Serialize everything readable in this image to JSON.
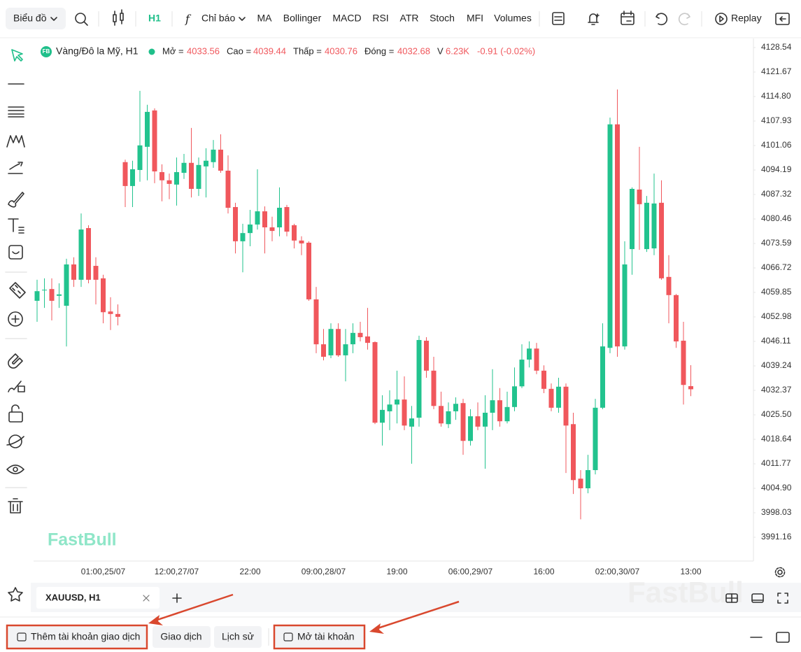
{
  "toolbar": {
    "chart_menu": "Biểu đồ",
    "interval": "H1",
    "indicators": "Chỉ báo",
    "items": [
      "MA",
      "Bollinger",
      "MACD",
      "RSI",
      "ATR",
      "Stoch",
      "MFI",
      "Volumes"
    ],
    "replay": "Replay"
  },
  "legend": {
    "badge": "FB",
    "symbol": "Vàng/Đô la Mỹ, H1",
    "open": "Mở =",
    "high": "Cao =",
    "low": "Thấp =",
    "close": "Đóng =",
    "volume_label": "V",
    "volume": "6.23K",
    "change": "-0.91 (-0.02%)"
  },
  "watermark": "FastBull",
  "tab": {
    "name": "XAUUSD, H1"
  },
  "footer": {
    "buttons": [
      "Thêm tài khoản giao dịch",
      "Giao dịch",
      "Lịch sử",
      "Mở tài khoản"
    ]
  },
  "chart_data": {
    "type": "candlestick",
    "up_color": "#22c38e",
    "down_color": "#f0575c",
    "categories": [
      null,
      null,
      null,
      null,
      null,
      null,
      null,
      null,
      null,
      "01:00,25/07",
      null,
      null,
      null,
      null,
      null,
      null,
      null,
      null,
      null,
      "12:00,27/07",
      null,
      null,
      null,
      null,
      null,
      null,
      null,
      null,
      null,
      "22:00",
      null,
      null,
      null,
      null,
      null,
      null,
      null,
      null,
      null,
      "09:00,28/07",
      null,
      null,
      null,
      null,
      null,
      null,
      null,
      null,
      null,
      "19:00",
      null,
      null,
      null,
      null,
      null,
      null,
      null,
      null,
      null,
      "06:00,29/07",
      null,
      null,
      null,
      null,
      null,
      null,
      null,
      null,
      null,
      "16:00",
      null,
      null,
      null,
      null,
      null,
      null,
      null,
      null,
      null,
      "02:00,30/07",
      null,
      null,
      null,
      null,
      null,
      null,
      null,
      null,
      null,
      "13:00"
    ],
    "open": [
      4057.5,
      4060.4,
      4060.8,
      4058.9,
      4056.1,
      4067.7,
      4063.4,
      4077.9,
      4067.3,
      4063.8,
      4054.5,
      4053.8,
      4096.4,
      4089.7,
      4094.2,
      4100.7,
      4110.9,
      4093.6,
      4091.3,
      4090.1,
      4093.4,
      4096.2,
      4088.9,
      4095.2,
      4096.4,
      4099.9,
      4094.0,
      4083.8,
      4074.2,
      4076.5,
      4078.9,
      4082.6,
      4078.1,
      4078.1,
      4083.8,
      4078.7,
      4074.4,
      4073.8,
      4057.9,
      4045.3,
      4042.2,
      4049.6,
      4042.2,
      4045.3,
      4048.5,
      4047.5,
      4045.9,
      4023.3,
      4026.5,
      4028.4,
      4029.8,
      4022.2,
      4024.7,
      4046.3,
      4037.9,
      4028.0,
      4022.9,
      4026.5,
      4028.8,
      4018.2,
      4025.1,
      4022.2,
      4026.1,
      4029.6,
      4023.7,
      4027.7,
      4033.5,
      4041.0,
      4044.1,
      4037.9,
      4032.8,
      4027.5,
      4033.4,
      4022.9,
      4007.6,
      4004.9,
      4010.0,
      4027.5,
      4044.3,
      4107.0,
      4044.7,
      4072.0,
      4088.7,
      4072.0,
      4072.2,
      4085.0,
      4064.2,
      4059.1,
      4046.3,
      4033.56
    ],
    "high": [
      4063.4,
      4063.8,
      4063.8,
      4062.4,
      4069.3,
      4069.7,
      4082.0,
      4078.7,
      4069.7,
      4064.8,
      4058.5,
      4056.5,
      4097.1,
      4096.8,
      4116.4,
      4112.5,
      4111.5,
      4095.8,
      4093.2,
      4097.7,
      4098.7,
      4106.0,
      4097.7,
      4100.3,
      4102.6,
      4104.2,
      4098.3,
      4085.0,
      4079.1,
      4083.0,
      4094.4,
      4084.0,
      4081.1,
      4089.3,
      4084.4,
      4079.1,
      4075.6,
      4074.2,
      4061.4,
      4049.6,
      4051.2,
      4051.2,
      4049.6,
      4051.2,
      4051.6,
      4055.5,
      4046.1,
      4031.0,
      4032.4,
      4037.9,
      4036.3,
      4028.0,
      4047.7,
      4047.3,
      4041.8,
      4032.0,
      4029.0,
      4030.4,
      4030.0,
      4027.1,
      4029.0,
      4031.0,
      4038.3,
      4033.0,
      4032.0,
      4038.8,
      4045.3,
      4046.1,
      4045.7,
      4039.4,
      4034.3,
      4035.9,
      4034.3,
      4026.1,
      4010.0,
      4014.3,
      4030.0,
      4051.2,
      4108.9,
      4116.8,
      4074.2,
      4089.3,
      4100.7,
      4086.9,
      4093.2,
      4091.3,
      4070.3,
      4059.4,
      4051.6,
      4039.44
    ],
    "low": [
      4051.6,
      4055.5,
      4052.0,
      4055.5,
      4044.7,
      4061.4,
      4061.4,
      4062.4,
      4056.5,
      4051.2,
      4049.3,
      4050.6,
      4083.8,
      4083.8,
      4090.9,
      4091.3,
      4090.5,
      4085.4,
      4086.0,
      4084.2,
      4091.7,
      4086.5,
      4086.9,
      4086.5,
      4094.8,
      4093.4,
      4082.0,
      4070.8,
      4065.5,
      4072.8,
      4077.5,
      4070.8,
      4074.2,
      4075.6,
      4075.6,
      4072.2,
      4070.3,
      4057.5,
      4042.8,
      4040.8,
      4041.4,
      4041.8,
      4034.9,
      4042.8,
      4046.1,
      4043.8,
      4022.9,
      4016.9,
      4021.2,
      4023.1,
      4021.2,
      4011.8,
      4022.2,
      4035.9,
      4027.1,
      4022.2,
      4021.8,
      4024.1,
      4014.3,
      4016.9,
      4021.2,
      4010.4,
      4021.2,
      4022.2,
      4023.1,
      4026.5,
      4033.0,
      4038.8,
      4036.9,
      4031.6,
      4026.5,
      4026.1,
      4009.2,
      4003.3,
      3996.2,
      4003.5,
      4008.8,
      4027.1,
      4042.8,
      4041.8,
      4043.8,
      4064.8,
      4071.8,
      4071.2,
      4070.3,
      4063.4,
      4051.2,
      4044.3,
      4028.4,
      4030.76
    ],
    "close": [
      4060.2,
      4060.6,
      4057.5,
      4059.3,
      4067.7,
      4063.4,
      4077.5,
      4063.4,
      4063.4,
      4054.3,
      4053.8,
      4053.0,
      4089.7,
      4094.4,
      4101.1,
      4110.5,
      4093.8,
      4091.3,
      4090.3,
      4093.6,
      4096.2,
      4088.9,
      4095.6,
      4096.8,
      4099.9,
      4094.0,
      4083.6,
      4074.2,
      4076.5,
      4078.9,
      4082.6,
      4078.1,
      4077.1,
      4083.6,
      4076.9,
      4074.4,
      4073.6,
      4057.9,
      4045.3,
      4041.8,
      4049.6,
      4042.2,
      4045.3,
      4048.5,
      4047.3,
      4045.7,
      4023.3,
      4026.9,
      4028.4,
      4029.8,
      4022.5,
      4024.5,
      4046.5,
      4037.9,
      4028.0,
      4023.1,
      4026.5,
      4028.6,
      4018.2,
      4025.1,
      4022.2,
      4026.1,
      4029.6,
      4023.7,
      4027.7,
      4033.5,
      4041.0,
      4044.1,
      4037.9,
      4032.8,
      4027.5,
      4033.4,
      4022.5,
      4007.2,
      4004.9,
      4010.0,
      4027.5,
      4044.7,
      4107.0,
      4044.7,
      4067.7,
      4088.9,
      4084.6,
      4085.0,
      4084.8,
      4063.8,
      4059.1,
      4046.1,
      4033.9,
      4032.68
    ],
    "ylim": [
      3984.88,
      4131.09
    ],
    "yticks": [
      4128.54,
      4121.67,
      {
        "value": 4114.8,
        "label": "4114.80"
      },
      4107.93,
      4101.06,
      4094.19,
      4087.32,
      4080.46,
      4073.59,
      4066.72,
      4059.85,
      4052.98,
      4046.11,
      4039.24,
      4032.37,
      {
        "value": 4025.5,
        "label": "4025.50"
      },
      4018.64,
      4011.77,
      {
        "value": 4004.9,
        "label": "4004.90"
      },
      3998.03,
      3991.16
    ]
  }
}
